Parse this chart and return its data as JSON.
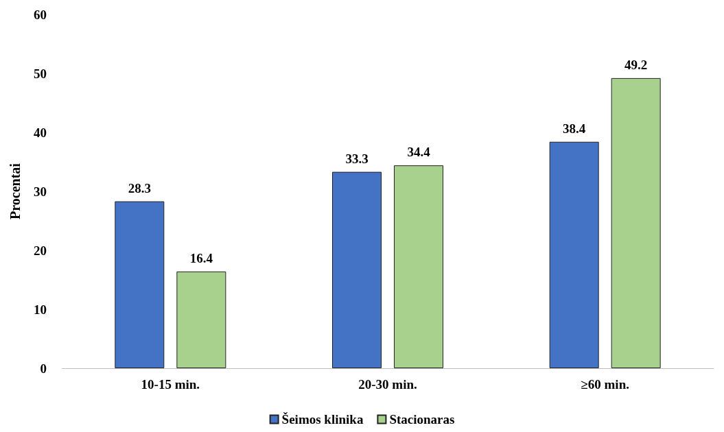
{
  "chart_data": {
    "type": "bar",
    "ylabel": "Procentai",
    "categories": [
      "10-15 min.",
      "20-30 min.",
      "≥60 min."
    ],
    "series": [
      {
        "name": "Šeimos klinika",
        "color": "#4472c4",
        "values": [
          28.3,
          33.3,
          38.4
        ]
      },
      {
        "name": "Stacionaras",
        "color": "#a9d18e",
        "values": [
          16.4,
          34.4,
          49.2
        ]
      }
    ],
    "ylim": [
      0,
      60
    ],
    "yticks": [
      0,
      10,
      20,
      30,
      40,
      50,
      60
    ],
    "grid": false,
    "legend": "bottom",
    "data_labels": true
  }
}
